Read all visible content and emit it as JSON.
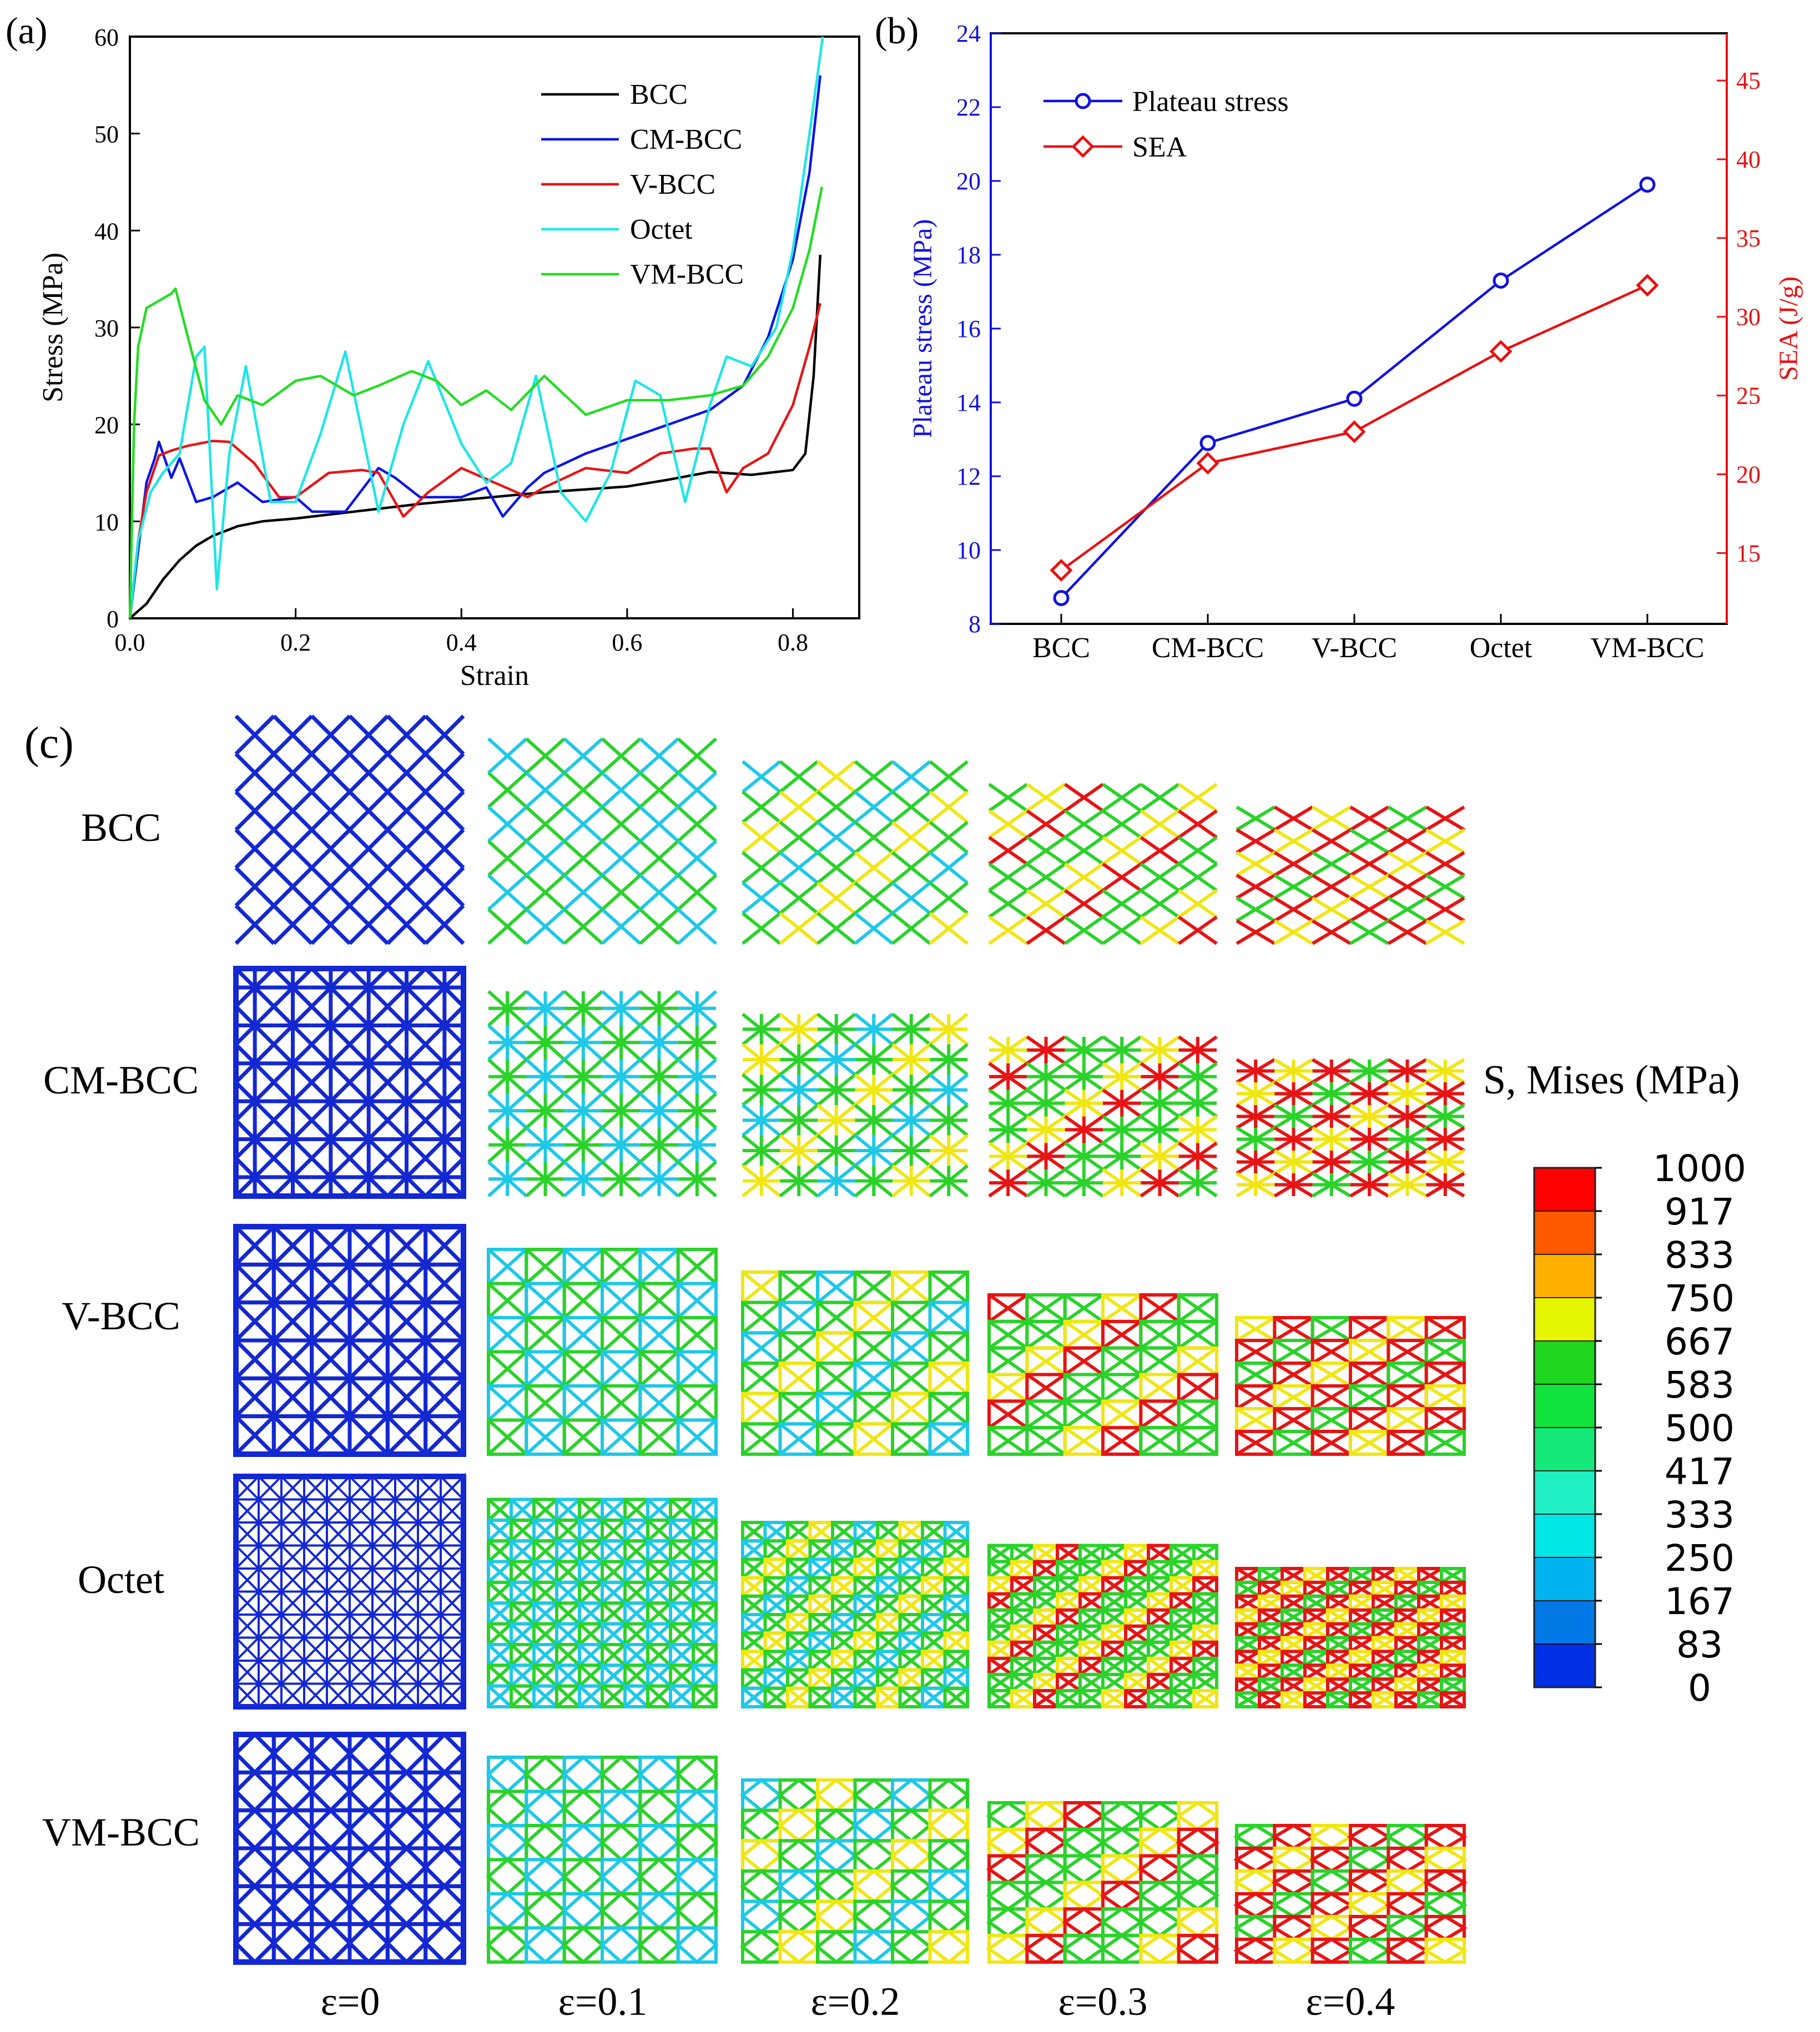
{
  "chart_data": [
    {
      "panel": "(a)",
      "type": "line",
      "title": "",
      "xlabel": "Strain",
      "ylabel": "Stress (MPa)",
      "xlim": [
        0.0,
        0.88
      ],
      "ylim": [
        0,
        60
      ],
      "xticks": [
        "0.0",
        "0.2",
        "0.4",
        "0.6",
        "0.8"
      ],
      "yticks": [
        "0",
        "10",
        "20",
        "30",
        "40",
        "50",
        "60"
      ],
      "legend_position": "top-right",
      "series": [
        {
          "name": "BCC",
          "color": "#000000",
          "x": [
            0,
            0.02,
            0.04,
            0.06,
            0.08,
            0.1,
            0.13,
            0.16,
            0.2,
            0.25,
            0.3,
            0.35,
            0.4,
            0.45,
            0.5,
            0.55,
            0.6,
            0.65,
            0.7,
            0.75,
            0.8,
            0.815,
            0.825,
            0.833
          ],
          "y": [
            0,
            1.5,
            4,
            6,
            7.5,
            8.5,
            9.5,
            10,
            10.3,
            10.8,
            11.3,
            11.8,
            12.2,
            12.6,
            13,
            13.3,
            13.6,
            14.3,
            15.1,
            14.8,
            15.3,
            17,
            25,
            37.5
          ]
        },
        {
          "name": "CM-BCC",
          "color": "#0a14e6",
          "x": [
            0,
            0.01,
            0.02,
            0.03,
            0.035,
            0.05,
            0.06,
            0.08,
            0.1,
            0.13,
            0.16,
            0.2,
            0.22,
            0.26,
            0.3,
            0.32,
            0.35,
            0.4,
            0.43,
            0.45,
            0.48,
            0.5,
            0.55,
            0.6,
            0.65,
            0.7,
            0.74,
            0.77,
            0.8,
            0.82,
            0.833
          ],
          "y": [
            0,
            7,
            14,
            16.5,
            18.2,
            14.5,
            16.5,
            12,
            12.5,
            14,
            12,
            12.5,
            11,
            11,
            15.5,
            14.5,
            12.5,
            12.5,
            13.5,
            10.5,
            13.5,
            15,
            17,
            18.5,
            20,
            21.5,
            24,
            29,
            37,
            46,
            56
          ]
        },
        {
          "name": "V-BCC",
          "color": "#e61414",
          "x": [
            0,
            0.01,
            0.02,
            0.035,
            0.05,
            0.07,
            0.1,
            0.12,
            0.15,
            0.18,
            0.2,
            0.24,
            0.28,
            0.3,
            0.33,
            0.36,
            0.4,
            0.44,
            0.48,
            0.5,
            0.55,
            0.6,
            0.64,
            0.68,
            0.7,
            0.72,
            0.74,
            0.77,
            0.8,
            0.82,
            0.833
          ],
          "y": [
            0,
            8,
            13,
            16.8,
            17.3,
            17.8,
            18.3,
            18.2,
            16,
            12.5,
            12.5,
            15,
            15.3,
            15,
            10.5,
            13,
            15.5,
            14,
            12.5,
            13.5,
            15.5,
            15,
            17,
            17.5,
            17.5,
            13,
            15.5,
            17,
            22,
            28,
            32.5
          ]
        },
        {
          "name": "Octet",
          "color": "#1ce6e6",
          "x": [
            0,
            0.01,
            0.025,
            0.04,
            0.06,
            0.08,
            0.09,
            0.105,
            0.12,
            0.14,
            0.17,
            0.2,
            0.23,
            0.26,
            0.3,
            0.33,
            0.36,
            0.4,
            0.43,
            0.46,
            0.49,
            0.52,
            0.55,
            0.58,
            0.61,
            0.64,
            0.67,
            0.7,
            0.72,
            0.75,
            0.78,
            0.8,
            0.82,
            0.836
          ],
          "y": [
            0,
            8,
            13,
            15,
            17,
            27,
            28,
            3,
            17,
            26,
            12,
            12,
            19,
            27.5,
            11,
            20,
            26.5,
            18,
            14,
            16,
            25,
            13,
            10,
            15,
            24.5,
            23,
            12,
            22,
            27,
            26,
            30,
            38,
            50,
            60
          ]
        },
        {
          "name": "VM-BCC",
          "color": "#22dd22",
          "x": [
            0,
            0.005,
            0.01,
            0.02,
            0.03,
            0.05,
            0.055,
            0.07,
            0.09,
            0.11,
            0.13,
            0.16,
            0.2,
            0.23,
            0.27,
            0.3,
            0.34,
            0.37,
            0.4,
            0.43,
            0.46,
            0.5,
            0.55,
            0.6,
            0.65,
            0.7,
            0.74,
            0.77,
            0.8,
            0.82,
            0.835
          ],
          "y": [
            0,
            20,
            28,
            32,
            32.5,
            33.5,
            34,
            29,
            22.5,
            20,
            23,
            22,
            24.5,
            25,
            23,
            24,
            25.5,
            24.5,
            22,
            23.5,
            21.5,
            25,
            21,
            22.5,
            22.5,
            23,
            24,
            27,
            32,
            38,
            44.5
          ]
        }
      ]
    },
    {
      "panel": "(b)",
      "type": "line",
      "categories": [
        "BCC",
        "CM-BCC",
        "V-BCC",
        "Octet",
        "VM-BCC"
      ],
      "xlabel": "",
      "y_left": {
        "label": "Plateau stress (MPa)",
        "lim": [
          8,
          24
        ],
        "ticks": [
          "8",
          "10",
          "12",
          "14",
          "16",
          "18",
          "20",
          "22",
          "24"
        ]
      },
      "y_right": {
        "label": "SEA (J/g)",
        "lim": [
          10.5,
          48
        ],
        "ticks": [
          "15",
          "20",
          "25",
          "30",
          "35",
          "40",
          "45"
        ]
      },
      "legend_position": "top-left",
      "series": [
        {
          "name": "Plateau stress",
          "axis": "left",
          "color": "#1010e0",
          "marker": "circle",
          "values": [
            8.7,
            12.9,
            14.1,
            17.3,
            19.9
          ]
        },
        {
          "name": "SEA",
          "axis": "right",
          "color": "#e81010",
          "marker": "diamond",
          "values": [
            13.9,
            20.7,
            22.7,
            27.8,
            32.0
          ]
        }
      ]
    }
  ],
  "panel_c": {
    "label": "(c)",
    "rows": [
      "BCC",
      "CM-BCC",
      "V-BCC",
      "Octet",
      "VM-BCC"
    ],
    "columns": [
      "ε=0",
      "ε=0.1",
      "ε=0.2",
      "ε=0.3",
      "ε=0.4"
    ],
    "colorbar_title": "S, Mises (MPa)",
    "colorbar_ticks": [
      "1000",
      "917",
      "833",
      "750",
      "667",
      "583",
      "500",
      "417",
      "333",
      "250",
      "167",
      "83",
      "0"
    ],
    "colorbar_colors": [
      "#ff0000",
      "#ff5a00",
      "#ffb000",
      "#e6f500",
      "#1ed61e",
      "#12e23c",
      "#14e878",
      "#20f0c4",
      "#00e6e6",
      "#00b4f0",
      "#0078e6",
      "#0030e6"
    ],
    "lattice_colors": {
      "undeformed": "#1428d2",
      "low": "#1ec8e6",
      "mid": "#2ad22a",
      "high": "#f0e614",
      "peak": "#e61414"
    }
  }
}
